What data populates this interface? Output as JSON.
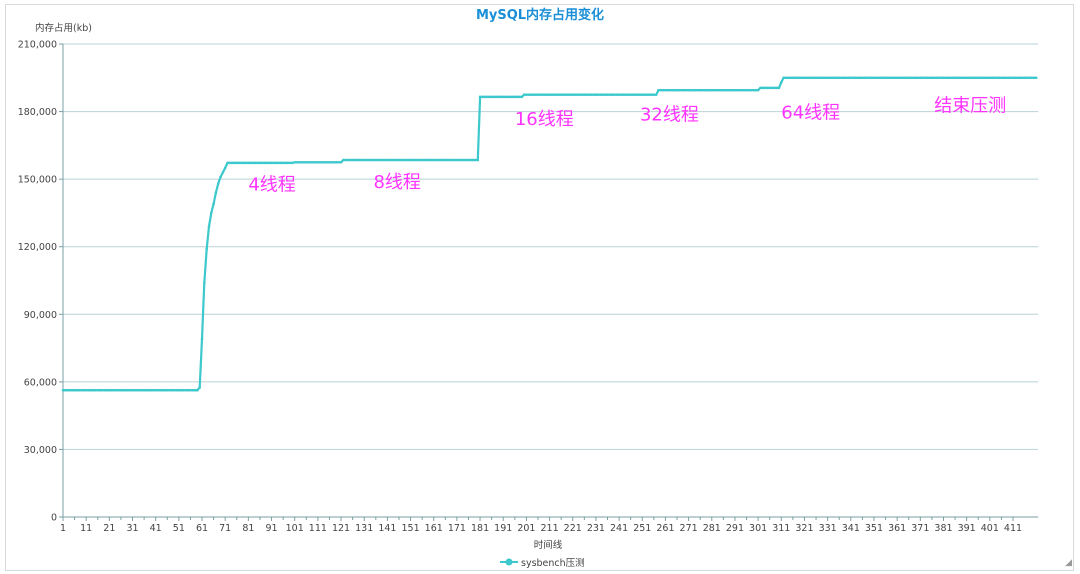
{
  "chart_data": {
    "type": "line",
    "title": "MySQL内存占用变化",
    "ylabel": "内存占用(kb)",
    "xlabel": "时间线",
    "ylim": [
      0,
      210000
    ],
    "yticks": [
      "0",
      "30,000",
      "60,000",
      "90,000",
      "120,000",
      "150,000",
      "180,000",
      "210,000"
    ],
    "xlim": [
      1,
      421
    ],
    "xticks": [
      "1",
      "11",
      "21",
      "31",
      "41",
      "51",
      "61",
      "71",
      "81",
      "91",
      "101",
      "111",
      "121",
      "131",
      "141",
      "151",
      "161",
      "171",
      "181",
      "191",
      "201",
      "211",
      "221",
      "231",
      "241",
      "251",
      "261",
      "271",
      "281",
      "291",
      "301",
      "311",
      "321",
      "331",
      "341",
      "351",
      "361",
      "371",
      "381",
      "391",
      "401",
      "411"
    ],
    "grid": "horizontal",
    "legend_position": "bottom",
    "colors": {
      "series": "#3cc8cc",
      "title": "#1a8fd6",
      "annotation": "#ff33ff",
      "grid": "#b9d3d6"
    },
    "series": [
      {
        "name": "sysbench压测",
        "runs": [
          {
            "from": 1,
            "to": 59,
            "value": 56300
          },
          {
            "from": 60,
            "to": 60,
            "value": 57500
          },
          {
            "from": 61,
            "to": 61,
            "value": 79000
          },
          {
            "from": 62,
            "to": 62,
            "value": 104000
          },
          {
            "from": 63,
            "to": 63,
            "value": 119000
          },
          {
            "from": 64,
            "to": 64,
            "value": 129000
          },
          {
            "from": 65,
            "to": 65,
            "value": 135000
          },
          {
            "from": 66,
            "to": 66,
            "value": 139000
          },
          {
            "from": 67,
            "to": 67,
            "value": 144000
          },
          {
            "from": 68,
            "to": 68,
            "value": 148000
          },
          {
            "from": 69,
            "to": 69,
            "value": 151000
          },
          {
            "from": 70,
            "to": 70,
            "value": 153000
          },
          {
            "from": 71,
            "to": 71,
            "value": 155000
          },
          {
            "from": 72,
            "to": 100,
            "value": 157200
          },
          {
            "from": 101,
            "to": 121,
            "value": 157500
          },
          {
            "from": 122,
            "to": 180,
            "value": 158500
          },
          {
            "from": 181,
            "to": 199,
            "value": 186500
          },
          {
            "from": 200,
            "to": 257,
            "value": 187500
          },
          {
            "from": 258,
            "to": 301,
            "value": 189500
          },
          {
            "from": 302,
            "to": 310,
            "value": 190500
          },
          {
            "from": 311,
            "to": 311,
            "value": 193000
          },
          {
            "from": 312,
            "to": 421,
            "value": 195000
          }
        ]
      }
    ],
    "annotations": [
      {
        "text": "4线程",
        "x": 81,
        "y": 145000
      },
      {
        "text": "8线程",
        "x": 135,
        "y": 146000
      },
      {
        "text": "16线程",
        "x": 196,
        "y": 174000
      },
      {
        "text": "32线程",
        "x": 250,
        "y": 176000
      },
      {
        "text": "64线程",
        "x": 311,
        "y": 177000
      },
      {
        "text": "结束压测",
        "x": 377,
        "y": 180000
      }
    ]
  }
}
